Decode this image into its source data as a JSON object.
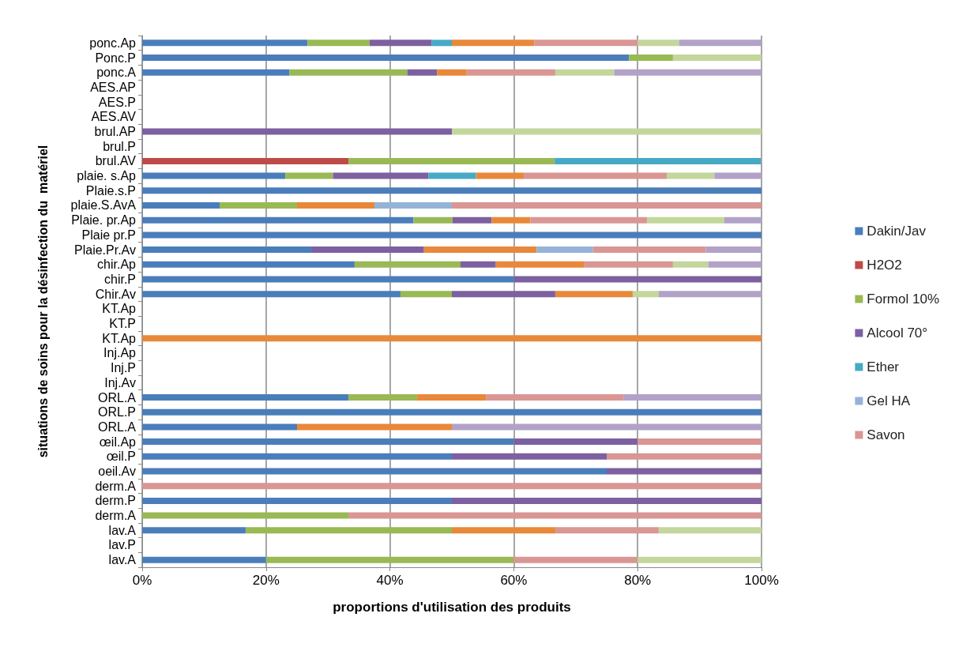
{
  "chart_data": {
    "type": "bar",
    "orientation": "horizontal",
    "stacked": true,
    "xlabel": "proportions d'utilisation des produits",
    "ylabel": "situations de soins pour la désinfection du  matériel",
    "categories": [
      "ponc.Ap",
      "Ponc.P",
      "ponc.A",
      "AES.AP",
      "AES.P",
      "AES.AV",
      "brul.AP",
      "brul.P",
      "brul.AV",
      "plaie. s.Ap",
      "Plaie.s.P",
      "plaie.S.AvA",
      "Plaie. pr.Ap",
      "Plaie pr.P",
      "Plaie.Pr.Av",
      "chir.Ap",
      "chir.P",
      "Chir.Av",
      "KT.Ap",
      "KT.P",
      "KT.Ap",
      "Inj.Ap",
      "Inj.P",
      "Inj.Av",
      "ORL.A",
      "ORL.P",
      "ORL.A",
      "œil.Ap",
      "œil.P",
      "oeil.Av",
      "derm.A",
      "derm.P",
      "derm.A",
      "lav.A",
      "lav.P",
      "lav.A"
    ],
    "xlim": [
      0,
      100
    ],
    "xticks": [
      {
        "value": 0,
        "label": "0%"
      },
      {
        "value": 20,
        "label": "20%"
      },
      {
        "value": 40,
        "label": "40%"
      },
      {
        "value": 60,
        "label": "60%"
      },
      {
        "value": 80,
        "label": "80%"
      },
      {
        "value": 100,
        "label": "100%"
      }
    ],
    "grid": "x",
    "legend": "right",
    "series": [
      {
        "name": "Dakin/Jav",
        "color": "#4a7ebb",
        "values": [
          26.7,
          78.6,
          23.8,
          null,
          null,
          null,
          null,
          null,
          null,
          23.1,
          100,
          12.5,
          43.8,
          100,
          27.3,
          34.3,
          60,
          41.7,
          null,
          null,
          null,
          null,
          null,
          null,
          33.3,
          100,
          25,
          60,
          50,
          75,
          null,
          50,
          null,
          16.7,
          null,
          20
        ]
      },
      {
        "name": "H2O2",
        "color": "#be4b48",
        "values": [
          null,
          null,
          null,
          null,
          null,
          null,
          null,
          null,
          33.3,
          null,
          null,
          null,
          null,
          null,
          null,
          null,
          null,
          null,
          null,
          null,
          null,
          null,
          null,
          null,
          null,
          null,
          null,
          null,
          null,
          null,
          null,
          null,
          null,
          null,
          null,
          null
        ]
      },
      {
        "name": "Formol 10%",
        "color": "#98b954",
        "values": [
          10,
          7.1,
          19.0,
          null,
          null,
          null,
          null,
          null,
          33.3,
          7.7,
          null,
          12.5,
          6.3,
          null,
          null,
          17.1,
          null,
          8.3,
          null,
          null,
          null,
          null,
          null,
          null,
          11.1,
          null,
          null,
          null,
          null,
          null,
          null,
          null,
          33.3,
          33.3,
          null,
          40
        ]
      },
      {
        "name": "Alcool 70°",
        "color": "#7d60a0",
        "values": [
          10,
          null,
          4.8,
          null,
          null,
          null,
          50,
          null,
          null,
          15.4,
          null,
          null,
          6.3,
          null,
          18.2,
          5.7,
          40,
          16.7,
          null,
          null,
          null,
          null,
          null,
          null,
          null,
          null,
          null,
          20,
          25,
          25,
          null,
          50,
          null,
          null,
          null,
          null
        ]
      },
      {
        "name": "Ether",
        "color": "#46aac5",
        "values": [
          3.3,
          null,
          null,
          null,
          null,
          null,
          null,
          null,
          33.3,
          7.7,
          null,
          null,
          null,
          null,
          null,
          null,
          null,
          null,
          null,
          null,
          null,
          null,
          null,
          null,
          null,
          null,
          null,
          null,
          null,
          null,
          null,
          null,
          null,
          null,
          null,
          null
        ]
      },
      {
        "color": "#e8883a",
        "values": [
          13.3,
          null,
          4.8,
          null,
          null,
          null,
          null,
          null,
          null,
          7.7,
          null,
          12.5,
          6.3,
          null,
          18.2,
          14.3,
          null,
          12.5,
          null,
          null,
          100,
          null,
          null,
          null,
          11.1,
          null,
          25,
          null,
          null,
          null,
          null,
          null,
          null,
          16.7,
          null,
          null
        ]
      },
      {
        "name": "Gel HA",
        "color": "#95b3d7",
        "values": [
          null,
          null,
          null,
          null,
          null,
          null,
          null,
          null,
          null,
          null,
          null,
          12.5,
          null,
          null,
          9.1,
          null,
          null,
          null,
          null,
          null,
          null,
          null,
          null,
          null,
          null,
          null,
          null,
          null,
          null,
          null,
          null,
          null,
          null,
          null,
          null,
          null
        ]
      },
      {
        "name": "Savon",
        "color": "#d99694",
        "values": [
          16.7,
          null,
          14.3,
          null,
          null,
          null,
          null,
          null,
          null,
          23.1,
          null,
          50,
          18.8,
          null,
          18.2,
          14.3,
          null,
          null,
          null,
          null,
          null,
          null,
          null,
          null,
          22.2,
          null,
          null,
          20,
          25,
          null,
          100,
          null,
          66.7,
          16.7,
          null,
          20
        ]
      },
      {
        "color": "#c3d69b",
        "values": [
          6.7,
          14.3,
          9.5,
          null,
          null,
          null,
          50,
          null,
          null,
          7.7,
          null,
          null,
          12.5,
          null,
          null,
          5.7,
          null,
          4.2,
          null,
          null,
          null,
          null,
          null,
          null,
          null,
          null,
          null,
          null,
          null,
          null,
          null,
          null,
          null,
          16.7,
          null,
          20
        ]
      },
      {
        "color": "#b2a2c7",
        "values": [
          13.3,
          null,
          23.8,
          null,
          null,
          null,
          null,
          null,
          null,
          7.7,
          null,
          null,
          6.3,
          null,
          9.1,
          8.6,
          null,
          16.7,
          null,
          null,
          null,
          null,
          null,
          null,
          22.2,
          null,
          50,
          null,
          null,
          null,
          null,
          null,
          null,
          null,
          null,
          null
        ]
      }
    ]
  }
}
